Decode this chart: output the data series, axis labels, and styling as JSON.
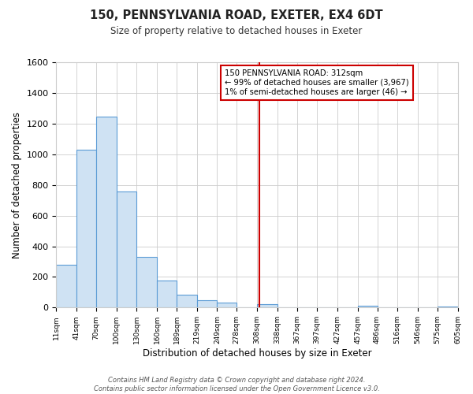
{
  "title": "150, PENNSYLVANIA ROAD, EXETER, EX4 6DT",
  "subtitle": "Size of property relative to detached houses in Exeter",
  "xlabel": "Distribution of detached houses by size in Exeter",
  "ylabel": "Number of detached properties",
  "bin_edges": [
    11,
    41,
    70,
    100,
    130,
    160,
    189,
    219,
    249,
    278,
    308,
    338,
    367,
    397,
    427,
    457,
    486,
    516,
    546,
    575,
    605
  ],
  "bin_heights": [
    280,
    1030,
    1245,
    755,
    330,
    175,
    85,
    50,
    35,
    0,
    20,
    0,
    0,
    0,
    0,
    10,
    0,
    0,
    0,
    5
  ],
  "bar_facecolor": "#cfe2f3",
  "bar_edgecolor": "#5b9bd5",
  "grid_color": "#cccccc",
  "vline_x": 312,
  "vline_color": "#cc0000",
  "annotation_line1": "150 PENNSYLVANIA ROAD: 312sqm",
  "annotation_line2": "← 99% of detached houses are smaller (3,967)",
  "annotation_line3": "1% of semi-detached houses are larger (46) →",
  "annotation_box_edgecolor": "#cc0000",
  "annotation_box_facecolor": "#ffffff",
  "footnote": "Contains HM Land Registry data © Crown copyright and database right 2024.\nContains public sector information licensed under the Open Government Licence v3.0.",
  "ylim": [
    0,
    1600
  ],
  "xlim": [
    11,
    605
  ],
  "background_color": "#ffffff",
  "tick_labels": [
    "11sqm",
    "41sqm",
    "70sqm",
    "100sqm",
    "130sqm",
    "160sqm",
    "189sqm",
    "219sqm",
    "249sqm",
    "278sqm",
    "308sqm",
    "338sqm",
    "367sqm",
    "397sqm",
    "427sqm",
    "457sqm",
    "486sqm",
    "516sqm",
    "546sqm",
    "575sqm",
    "605sqm"
  ]
}
